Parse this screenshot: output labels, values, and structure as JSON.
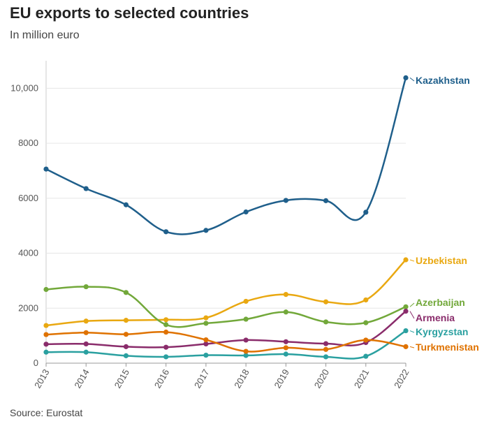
{
  "chart_data": {
    "type": "line",
    "title": "EU exports to selected countries",
    "subtitle": "In million euro",
    "source": "Source: Eurostat",
    "x": [
      "2013",
      "2014",
      "2015",
      "2016",
      "2017",
      "2018",
      "2019",
      "2020",
      "2021",
      "2022"
    ],
    "ylim": [
      0,
      11000
    ],
    "yticks": [
      0,
      2000,
      4000,
      6000,
      8000,
      10000
    ],
    "ytick_labels": [
      "0",
      "2000",
      "4000",
      "6000",
      "8000",
      "10,000"
    ],
    "grid": "horizontal",
    "series": [
      {
        "name": "Kazakhstan",
        "color": "#1f5f8b",
        "values": [
          7060,
          6350,
          5760,
          4780,
          4830,
          5500,
          5920,
          5910,
          5490,
          10380
        ]
      },
      {
        "name": "Uzbekistan",
        "color": "#e9a811",
        "values": [
          1370,
          1530,
          1560,
          1580,
          1650,
          2250,
          2500,
          2230,
          2300,
          3760
        ]
      },
      {
        "name": "Azerbaijan",
        "color": "#72a83a",
        "values": [
          2680,
          2780,
          2570,
          1400,
          1450,
          1600,
          1860,
          1500,
          1470,
          2050
        ]
      },
      {
        "name": "Armenia",
        "color": "#8a2c6b",
        "values": [
          690,
          700,
          600,
          580,
          700,
          840,
          780,
          710,
          750,
          1890
        ]
      },
      {
        "name": "Kyrgyzstan",
        "color": "#2aa0a0",
        "values": [
          400,
          400,
          270,
          230,
          290,
          280,
          330,
          230,
          250,
          1180
        ]
      },
      {
        "name": "Turkmenistan",
        "color": "#df7200",
        "values": [
          1040,
          1110,
          1050,
          1130,
          850,
          430,
          560,
          500,
          840,
          600
        ]
      }
    ]
  }
}
